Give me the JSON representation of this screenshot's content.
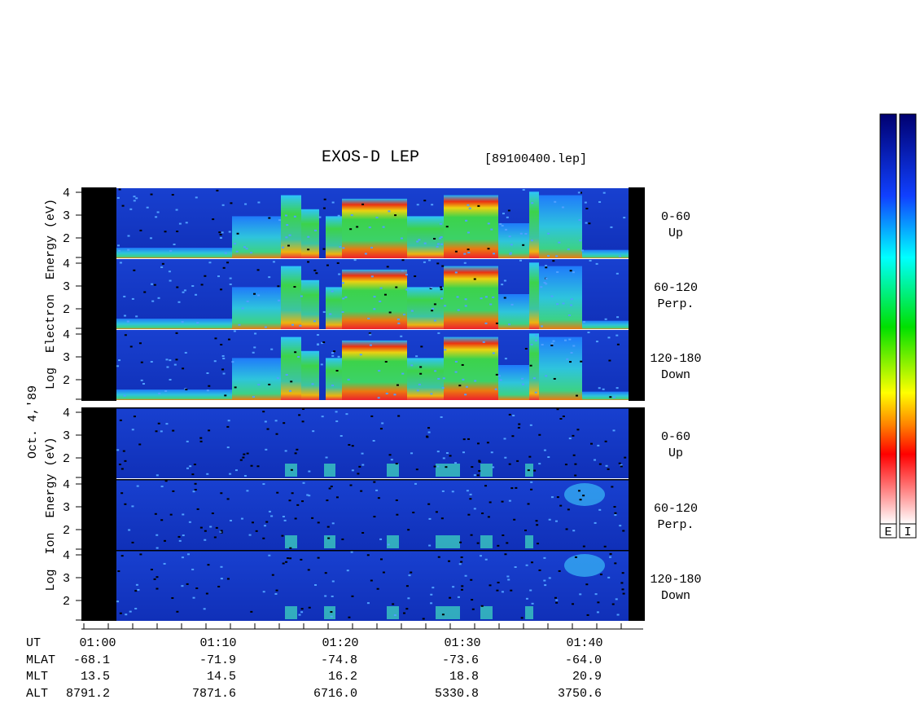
{
  "title": "EXOS-D LEP",
  "file": "[89100400.lep]",
  "date": "Oct. 4,'89",
  "electron": {
    "axis_label": [
      "Log",
      "Electron",
      "Energy (eV)"
    ],
    "panels": [
      {
        "angle": "0-60",
        "direction": "Up",
        "ticks": [
          4,
          3,
          2
        ]
      },
      {
        "angle": "60-120",
        "direction": "Perp.",
        "ticks": [
          4,
          3,
          2
        ]
      },
      {
        "angle": "120-180",
        "direction": "Down",
        "ticks": [
          4,
          3,
          2
        ]
      }
    ]
  },
  "ion": {
    "axis_label": [
      "Log",
      "Ion",
      "Energy (eV)"
    ],
    "panels": [
      {
        "angle": "0-60",
        "direction": "Up",
        "ticks": [
          4,
          3,
          2
        ]
      },
      {
        "angle": "60-120",
        "direction": "Perp.",
        "ticks": [
          4,
          3,
          2
        ]
      },
      {
        "angle": "120-180",
        "direction": "Down",
        "ticks": [
          4,
          3,
          2
        ]
      }
    ]
  },
  "orbit_table": {
    "row_labels": [
      "UT",
      "MLAT",
      "MLT",
      "ALT"
    ],
    "columns": [
      [
        "01:00",
        "-68.1",
        "13.5",
        "8791.2"
      ],
      [
        "01:10",
        "-71.9",
        "14.5",
        "7871.6"
      ],
      [
        "01:20",
        "-74.8",
        "16.2",
        "6716.0"
      ],
      [
        "01:30",
        "-73.6",
        "18.8",
        "5330.8"
      ],
      [
        "01:40",
        "-64.0",
        "20.9",
        "3750.6"
      ]
    ]
  },
  "colorbars": [
    "E",
    "I"
  ]
}
